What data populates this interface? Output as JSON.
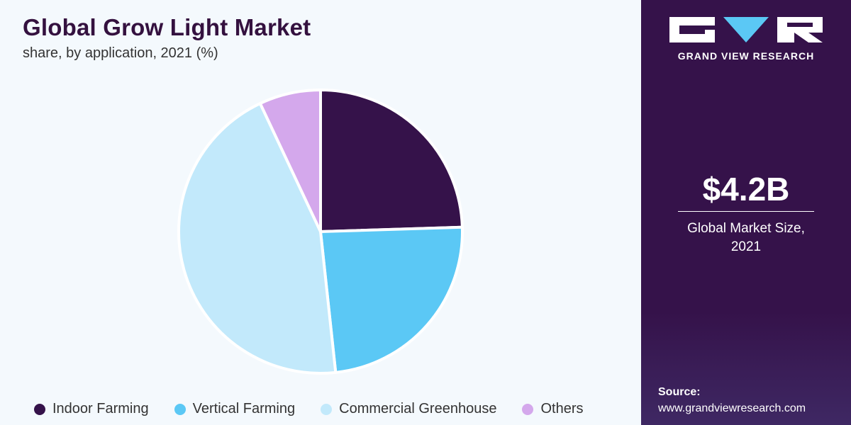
{
  "header": {
    "title": "Global Grow Light Market",
    "subtitle": "share, by application, 2021 (%)"
  },
  "chart_data": {
    "type": "pie",
    "title": "Global Grow Light Market",
    "subtitle": "share, by application, 2021 (%)",
    "categories": [
      "Indoor Farming",
      "Vertical Farming",
      "Commercial Greenhouse",
      "Others"
    ],
    "values": [
      24.5,
      23.8,
      44.7,
      7.0
    ],
    "colors": [
      "#35124a",
      "#5bc8f5",
      "#c2e9fb",
      "#d4a8ec"
    ],
    "legend_position": "bottom"
  },
  "legend": [
    {
      "label": "Indoor Farming",
      "color": "#35124a"
    },
    {
      "label": "Vertical Farming",
      "color": "#5bc8f5"
    },
    {
      "label": "Commercial Greenhouse",
      "color": "#c2e9fb"
    },
    {
      "label": "Others",
      "color": "#d4a8ec"
    }
  ],
  "sidebar": {
    "brand": "GRAND VIEW RESEARCH",
    "logo_icon": "gvr-logo-icon",
    "kpi_value": "$4.2B",
    "kpi_label_line1": "Global Market Size,",
    "kpi_label_line2": "2021",
    "source_label": "Source:",
    "source_url": "www.grandviewresearch.com"
  },
  "colors": {
    "accent": "#35124a",
    "background": "#f4f9fd",
    "logo_accent": "#5bc8f5"
  }
}
